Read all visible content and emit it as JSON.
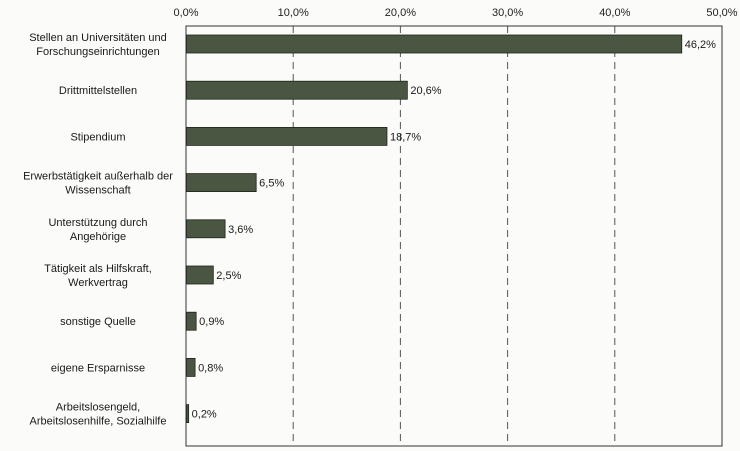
{
  "chart_data": {
    "type": "bar",
    "orientation": "horizontal",
    "xlim": [
      0,
      50
    ],
    "x_ticks": [
      0,
      10,
      20,
      30,
      40,
      50
    ],
    "x_tick_labels": [
      "0,0%",
      "10,0%",
      "20,0%",
      "30,0%",
      "40,0%",
      "50,0%"
    ],
    "x_axis_position": "top",
    "grid": "vertical dashed",
    "bar_color": "#4b5642",
    "categories": [
      [
        "Stellen an Universitäten und",
        "Forschungseinrichtungen"
      ],
      [
        "Drittmittelstellen"
      ],
      [
        "Stipendium"
      ],
      [
        "Erwerbstätigkeit außerhalb der",
        "Wissenschaft"
      ],
      [
        "Unterstützung durch",
        "Angehörige"
      ],
      [
        "Tätigkeit als Hilfskraft,",
        "Werkvertrag"
      ],
      [
        "sonstige Quelle"
      ],
      [
        "eigene Ersparnisse"
      ],
      [
        "Arbeitslosengeld,",
        "Arbeitslosenhilfe, Sozialhilfe"
      ]
    ],
    "values": [
      46.2,
      20.6,
      18.7,
      6.5,
      3.6,
      2.5,
      0.9,
      0.8,
      0.2
    ],
    "value_labels": [
      "46,2%",
      "20,6%",
      "18,7%",
      "6,5%",
      "3,6%",
      "2,5%",
      "0,9%",
      "0,8%",
      "0,2%"
    ]
  }
}
